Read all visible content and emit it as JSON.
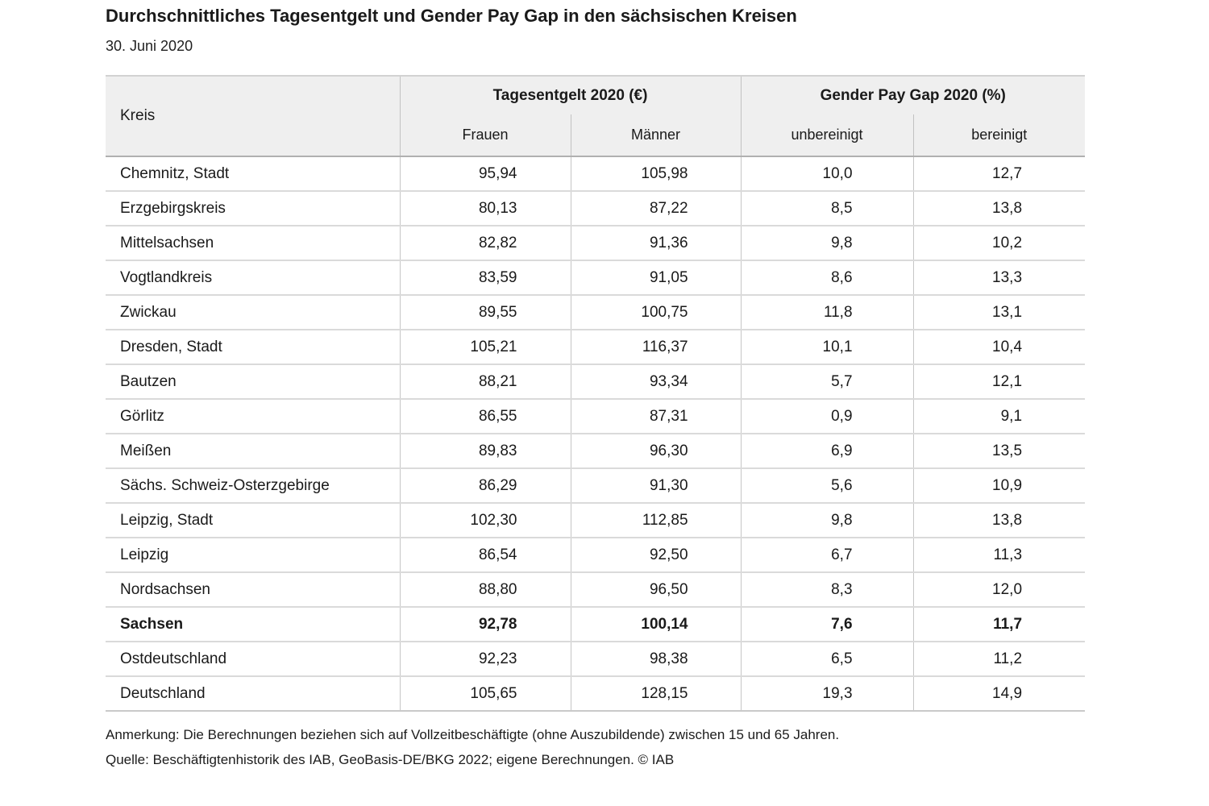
{
  "page": {
    "title": "Durchschnittliches Tagesentgelt und Gender Pay Gap in den sächsischen Kreisen",
    "subtitle": "30. Juni 2020"
  },
  "table": {
    "kreis_header": "Kreis",
    "group_headers": [
      {
        "label": "Tagesentgelt 2020 (€)"
      },
      {
        "label": "Gender Pay Gap 2020 (%)"
      }
    ],
    "sub_headers": [
      "Frauen",
      "Männer",
      "unbereinigt",
      "bereinigt"
    ],
    "rows": [
      {
        "kreis": "Chemnitz, Stadt",
        "frauen": "95,94",
        "maenner": "105,98",
        "unbereinigt": "10,0",
        "bereinigt": "12,7",
        "bold": false
      },
      {
        "kreis": "Erzgebirgskreis",
        "frauen": "80,13",
        "maenner": "87,22",
        "unbereinigt": "8,5",
        "bereinigt": "13,8",
        "bold": false
      },
      {
        "kreis": "Mittelsachsen",
        "frauen": "82,82",
        "maenner": "91,36",
        "unbereinigt": "9,8",
        "bereinigt": "10,2",
        "bold": false
      },
      {
        "kreis": "Vogtlandkreis",
        "frauen": "83,59",
        "maenner": "91,05",
        "unbereinigt": "8,6",
        "bereinigt": "13,3",
        "bold": false
      },
      {
        "kreis": "Zwickau",
        "frauen": "89,55",
        "maenner": "100,75",
        "unbereinigt": "11,8",
        "bereinigt": "13,1",
        "bold": false
      },
      {
        "kreis": "Dresden, Stadt",
        "frauen": "105,21",
        "maenner": "116,37",
        "unbereinigt": "10,1",
        "bereinigt": "10,4",
        "bold": false
      },
      {
        "kreis": "Bautzen",
        "frauen": "88,21",
        "maenner": "93,34",
        "unbereinigt": "5,7",
        "bereinigt": "12,1",
        "bold": false
      },
      {
        "kreis": "Görlitz",
        "frauen": "86,55",
        "maenner": "87,31",
        "unbereinigt": "0,9",
        "bereinigt": "9,1",
        "bold": false
      },
      {
        "kreis": "Meißen",
        "frauen": "89,83",
        "maenner": "96,30",
        "unbereinigt": "6,9",
        "bereinigt": "13,5",
        "bold": false
      },
      {
        "kreis": "Sächs. Schweiz-Osterzgebirge",
        "frauen": "86,29",
        "maenner": "91,30",
        "unbereinigt": "5,6",
        "bereinigt": "10,9",
        "bold": false
      },
      {
        "kreis": "Leipzig, Stadt",
        "frauen": "102,30",
        "maenner": "112,85",
        "unbereinigt": "9,8",
        "bereinigt": "13,8",
        "bold": false
      },
      {
        "kreis": "Leipzig",
        "frauen": "86,54",
        "maenner": "92,50",
        "unbereinigt": "6,7",
        "bereinigt": "11,3",
        "bold": false
      },
      {
        "kreis": "Nordsachsen",
        "frauen": "88,80",
        "maenner": "96,50",
        "unbereinigt": "8,3",
        "bereinigt": "12,0",
        "bold": false
      },
      {
        "kreis": "Sachsen",
        "frauen": "92,78",
        "maenner": "100,14",
        "unbereinigt": "7,6",
        "bereinigt": "11,7",
        "bold": true
      },
      {
        "kreis": "Ostdeutschland",
        "frauen": "92,23",
        "maenner": "98,38",
        "unbereinigt": "6,5",
        "bereinigt": "11,2",
        "bold": false
      },
      {
        "kreis": "Deutschland",
        "frauen": "105,65",
        "maenner": "128,15",
        "unbereinigt": "19,3",
        "bereinigt": "14,9",
        "bold": false
      }
    ]
  },
  "footer": {
    "note": "Anmerkung: Die Berechnungen beziehen sich auf Vollzeitbeschäftigte (ohne Auszubildende) zwischen 15 und 65 Jahren.",
    "source": "Quelle: Beschäftigtenhistorik des IAB, GeoBasis-DE/BKG 2022; eigene Berechnungen. © IAB"
  },
  "colors": {
    "text": "#1a1a1a",
    "header_background": "#efefef",
    "border_vertical": "#c2c2c2",
    "border_row": "#dadada",
    "border_header_bottom": "#b0b0b0"
  },
  "chart_data": {
    "type": "table",
    "title": "Durchschnittliches Tagesentgelt und Gender Pay Gap in den sächsischen Kreisen",
    "subtitle": "30. Juni 2020",
    "columns": [
      "Kreis",
      "Tagesentgelt 2020 (€) Frauen",
      "Tagesentgelt 2020 (€) Männer",
      "Gender Pay Gap 2020 (%) unbereinigt",
      "Gender Pay Gap 2020 (%) bereinigt"
    ],
    "rows": [
      [
        "Chemnitz, Stadt",
        95.94,
        105.98,
        10.0,
        12.7
      ],
      [
        "Erzgebirgskreis",
        80.13,
        87.22,
        8.5,
        13.8
      ],
      [
        "Mittelsachsen",
        82.82,
        91.36,
        9.8,
        10.2
      ],
      [
        "Vogtlandkreis",
        83.59,
        91.05,
        8.6,
        13.3
      ],
      [
        "Zwickau",
        89.55,
        100.75,
        11.8,
        13.1
      ],
      [
        "Dresden, Stadt",
        105.21,
        116.37,
        10.1,
        10.4
      ],
      [
        "Bautzen",
        88.21,
        93.34,
        5.7,
        12.1
      ],
      [
        "Görlitz",
        86.55,
        87.31,
        0.9,
        9.1
      ],
      [
        "Meißen",
        89.83,
        96.3,
        6.9,
        13.5
      ],
      [
        "Sächs. Schweiz-Osterzgebirge",
        86.29,
        91.3,
        5.6,
        10.9
      ],
      [
        "Leipzig, Stadt",
        102.3,
        112.85,
        9.8,
        13.8
      ],
      [
        "Leipzig",
        86.54,
        92.5,
        6.7,
        11.3
      ],
      [
        "Nordsachsen",
        88.8,
        96.5,
        8.3,
        12.0
      ],
      [
        "Sachsen",
        92.78,
        100.14,
        7.6,
        11.7
      ],
      [
        "Ostdeutschland",
        92.23,
        98.38,
        6.5,
        11.2
      ],
      [
        "Deutschland",
        105.65,
        128.15,
        19.3,
        14.9
      ]
    ],
    "notes": [
      "Anmerkung: Die Berechnungen beziehen sich auf Vollzeitbeschäftigte (ohne Auszubildende) zwischen 15 und 65 Jahren.",
      "Quelle: Beschäftigtenhistorik des IAB, GeoBasis-DE/BKG 2022; eigene Berechnungen. © IAB"
    ],
    "highlighted_row": "Sachsen"
  }
}
